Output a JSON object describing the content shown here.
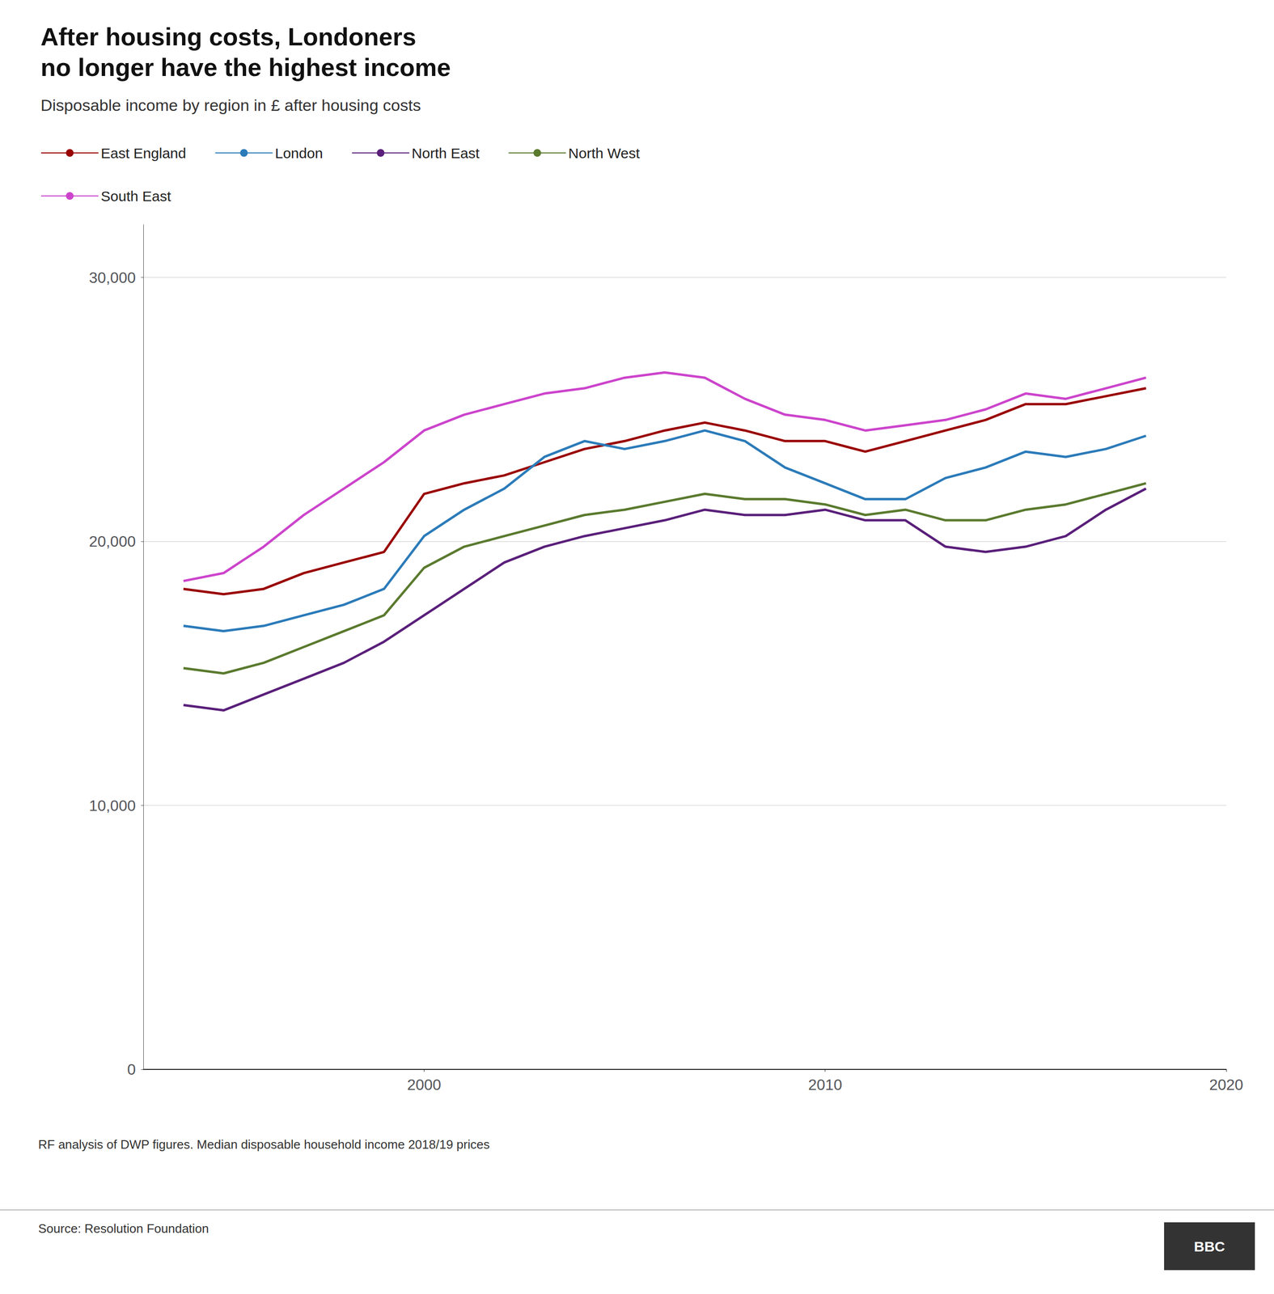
{
  "chart_data": {
    "type": "line",
    "title": "After housing costs, Londoners\nno longer have the highest income",
    "subtitle": "Disposable income by region in £ after housing costs",
    "footnote": "RF analysis of DWP figures. Median disposable household income 2018/19 prices",
    "source": "Source: Resolution Foundation",
    "annotations": [
      "BBC"
    ],
    "x": [
      1994,
      1995,
      1996,
      1997,
      1998,
      1999,
      2000,
      2001,
      2002,
      2003,
      2004,
      2005,
      2006,
      2007,
      2008,
      2009,
      2010,
      2011,
      2012,
      2013,
      2014,
      2015,
      2016,
      2017,
      2018
    ],
    "series": [
      {
        "name": "East England",
        "color": "#990000",
        "values": [
          18200,
          18000,
          18200,
          18800,
          19200,
          19600,
          21800,
          22200,
          22500,
          23000,
          23500,
          23800,
          24200,
          24500,
          24200,
          23800,
          23800,
          23400,
          23800,
          24200,
          24600,
          25200,
          25200,
          25500,
          25800
        ]
      },
      {
        "name": "London",
        "color": "#2b7bb9",
        "values": [
          16800,
          16600,
          16800,
          17200,
          17600,
          18200,
          20200,
          21200,
          22000,
          23200,
          23800,
          23500,
          23800,
          24200,
          23800,
          22800,
          22200,
          21600,
          21600,
          22400,
          22800,
          23400,
          23200,
          23500,
          24000
        ]
      },
      {
        "name": "North East",
        "color": "#5a1f7a",
        "values": [
          13800,
          13600,
          14200,
          14800,
          15400,
          16200,
          17200,
          18200,
          19200,
          19800,
          20200,
          20500,
          20800,
          21200,
          21000,
          21000,
          21200,
          20800,
          20800,
          19800,
          19600,
          19800,
          20200,
          21200,
          22000
        ]
      },
      {
        "name": "North West",
        "color": "#5a7a2e",
        "values": [
          15200,
          15000,
          15400,
          16000,
          16600,
          17200,
          19000,
          19800,
          20200,
          20600,
          21000,
          21200,
          21500,
          21800,
          21600,
          21600,
          21400,
          21000,
          21200,
          20800,
          20800,
          21200,
          21400,
          21800,
          22200
        ]
      },
      {
        "name": "South East",
        "color": "#cc44cc",
        "values": [
          18500,
          18800,
          19800,
          21000,
          22000,
          23000,
          24200,
          24800,
          25200,
          25600,
          25800,
          26200,
          26400,
          26200,
          25400,
          24800,
          24600,
          24200,
          24400,
          24600,
          25000,
          25600,
          25400,
          25800,
          26200
        ]
      }
    ],
    "xlim": [
      1993,
      2020
    ],
    "xticks": [
      2000,
      2010,
      2020
    ],
    "ylim": [
      0,
      32000
    ],
    "yticks": [
      0,
      {
        "value": 10000,
        "label": "10,000"
      },
      {
        "value": 20000,
        "label": "20,000"
      },
      {
        "value": 30000,
        "label": "30,000"
      }
    ],
    "grid": true,
    "legend": "top-left"
  }
}
